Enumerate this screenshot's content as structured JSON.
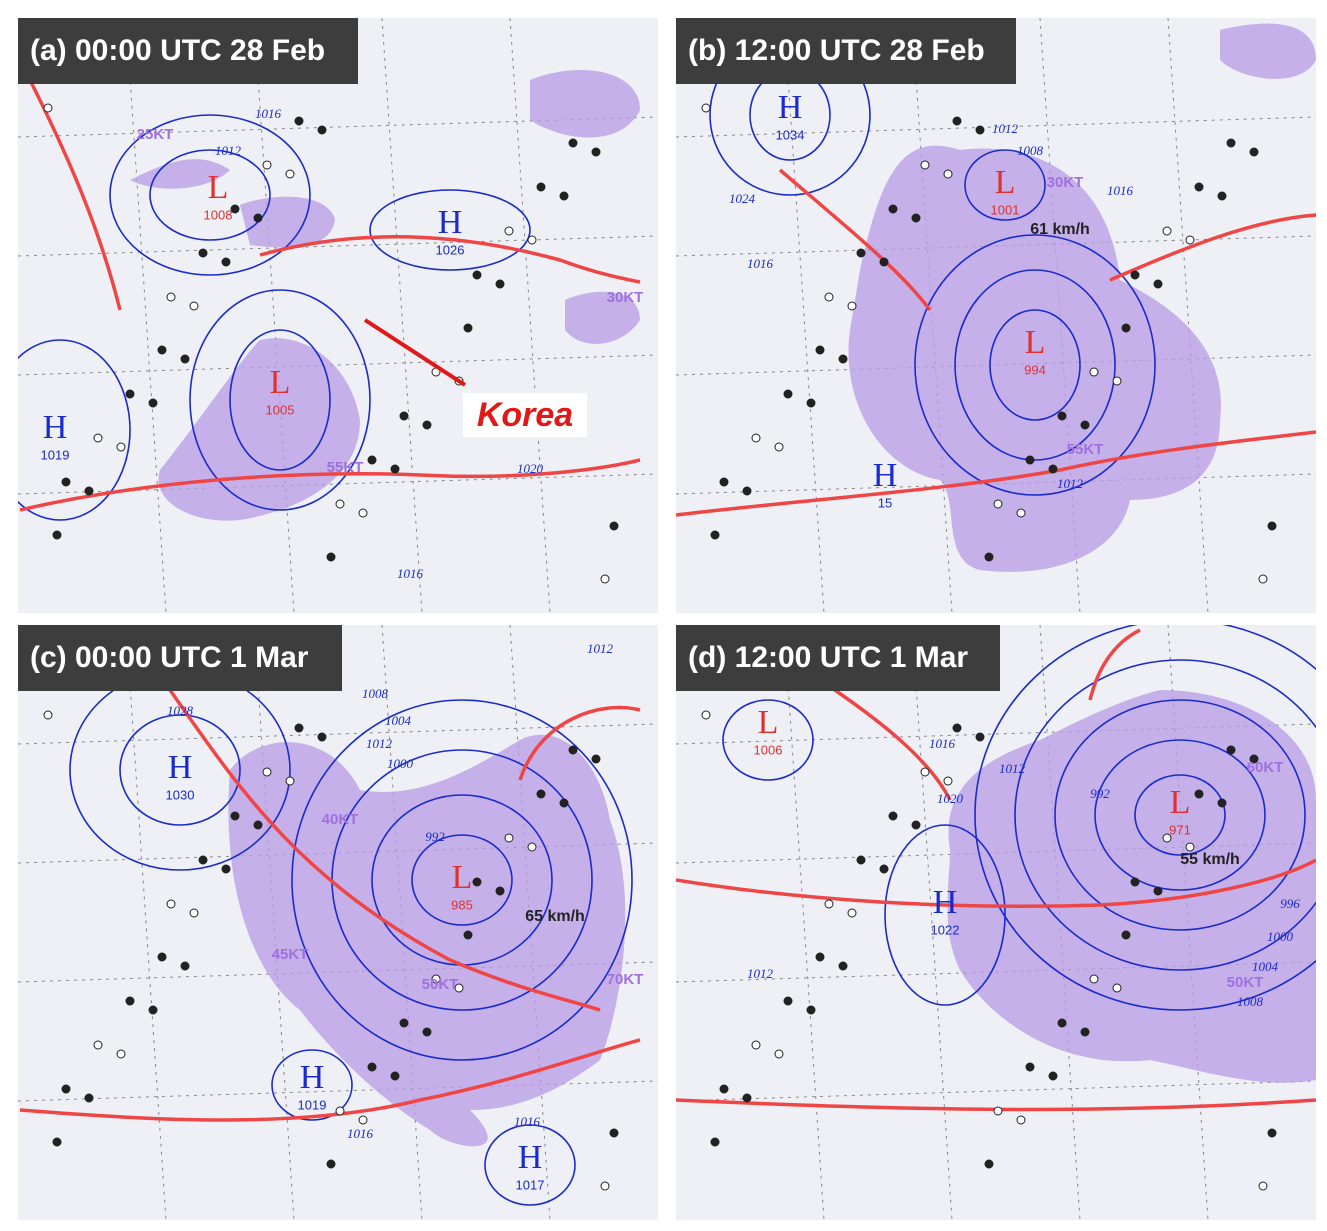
{
  "panels": [
    {
      "title": "(a) 00:00 UTC 28 Feb",
      "centers": [
        {
          "symbol": "L",
          "value": "1008"
        },
        {
          "symbol": "H",
          "value": "1026"
        },
        {
          "symbol": "H",
          "value": "1019"
        },
        {
          "symbol": "L",
          "value": "1005"
        }
      ],
      "isobar_labels": [
        "1012",
        "1016",
        "1020",
        "1016"
      ],
      "wind_labels": [
        "25KT",
        "30KT",
        "55KT"
      ],
      "annotations": [
        "Korea"
      ]
    },
    {
      "title": "(b) 12:00 UTC 28 Feb",
      "centers": [
        {
          "symbol": "H",
          "value": "1034"
        },
        {
          "symbol": "L",
          "value": "1001"
        },
        {
          "symbol": "L",
          "value": "994"
        },
        {
          "symbol": "H",
          "value": "15"
        }
      ],
      "isobar_labels": [
        "1024",
        "1016",
        "1012",
        "1008",
        "1016",
        "1012"
      ],
      "wind_labels": [
        "30KT",
        "55KT"
      ],
      "annotations": [
        "61 km/h"
      ]
    },
    {
      "title": "(c) 00:00 UTC 1 Mar",
      "centers": [
        {
          "symbol": "H",
          "value": "1030"
        },
        {
          "symbol": "L",
          "value": "985"
        },
        {
          "symbol": "H",
          "value": "1019"
        },
        {
          "symbol": "H",
          "value": "1017"
        }
      ],
      "isobar_labels": [
        "1028",
        "1008",
        "1004",
        "1012",
        "1000",
        "992",
        "1016",
        "1016",
        "1012"
      ],
      "wind_labels": [
        "40KT",
        "45KT",
        "50KT",
        "70KT"
      ],
      "annotations": [
        "65 km/h"
      ]
    },
    {
      "title": "(d) 12:00 UTC 1 Mar",
      "centers": [
        {
          "symbol": "L",
          "value": "1006"
        },
        {
          "symbol": "H",
          "value": "1022"
        },
        {
          "symbol": "L",
          "value": "971"
        }
      ],
      "isobar_labels": [
        "1016",
        "1020",
        "1012",
        "992",
        "996",
        "1000",
        "1004",
        "1008",
        "1012"
      ],
      "wind_labels": [
        "60KT",
        "50KT"
      ],
      "annotations": [
        "55 km/h"
      ]
    }
  ]
}
